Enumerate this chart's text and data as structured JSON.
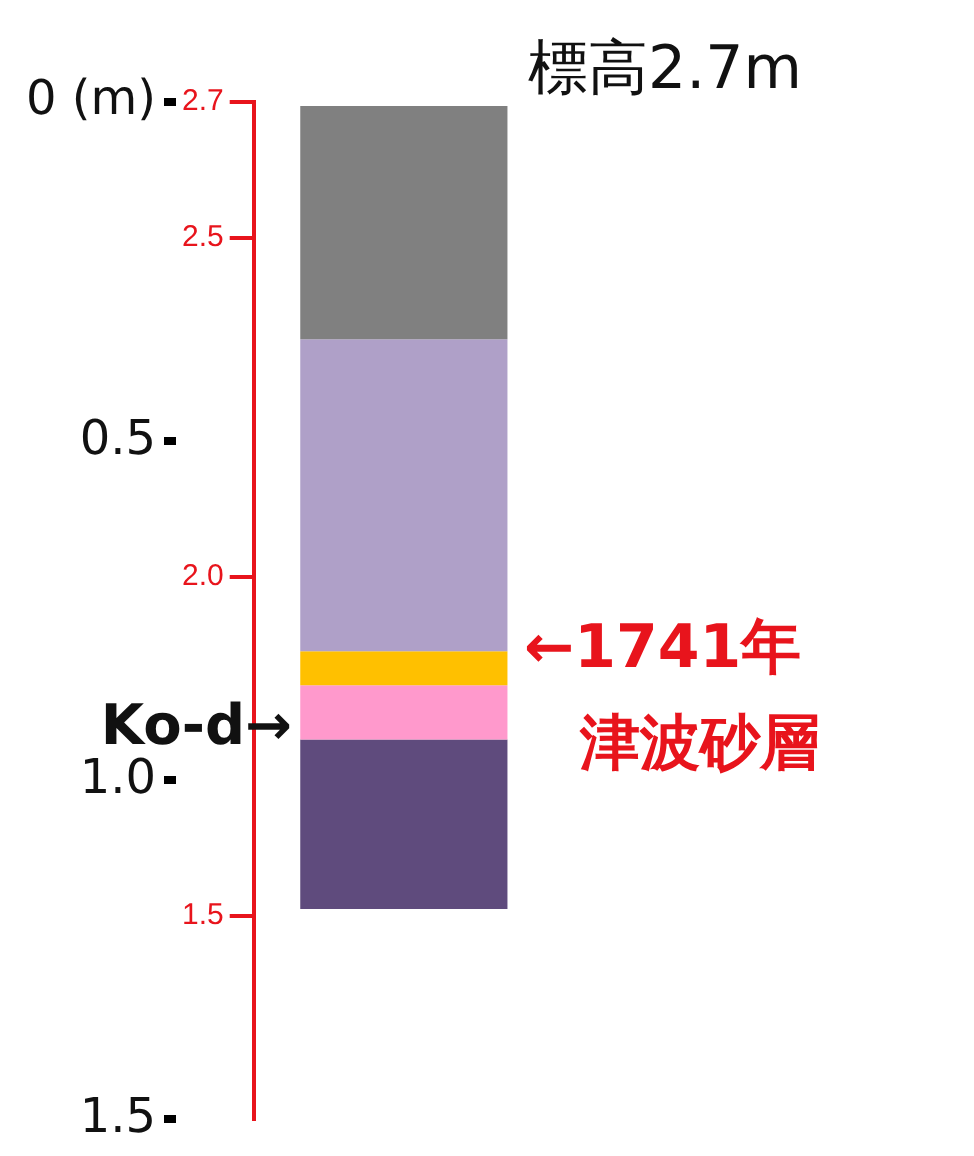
{
  "chart_data": {
    "type": "bar",
    "title": "標高2.7m",
    "categories": [
      null
    ],
    "stacked": true,
    "legend": false,
    "grid": false,
    "tick_labels": "y",
    "series": [
      {
        "color": "#808080",
        "values": [
          0.35
        ]
      },
      {
        "color": "#afa0c8",
        "values": [
          0.46
        ]
      },
      {
        "color": "#ffc000",
        "values": [
          0.05
        ]
      },
      {
        "color": "#ff99cc",
        "values": [
          0.08
        ]
      },
      {
        "color": "#5f4b7d",
        "values": [
          0.25
        ]
      }
    ],
    "ylim": [
      1.5,
      0
    ],
    "yticks": [
      {
        "value": 0,
        "label": "0 (m)"
      },
      0.5,
      {
        "value": 1,
        "label": "1.0"
      },
      1.5
    ],
    "y2lim": [
      1.2,
      2.7
    ],
    "y2ticks": [
      2.7,
      2.5,
      {
        "value": 2,
        "label": "2.0"
      },
      1.5
    ],
    "annotations": [
      "←1741年津波砂層",
      "Ko-d→"
    ]
  }
}
